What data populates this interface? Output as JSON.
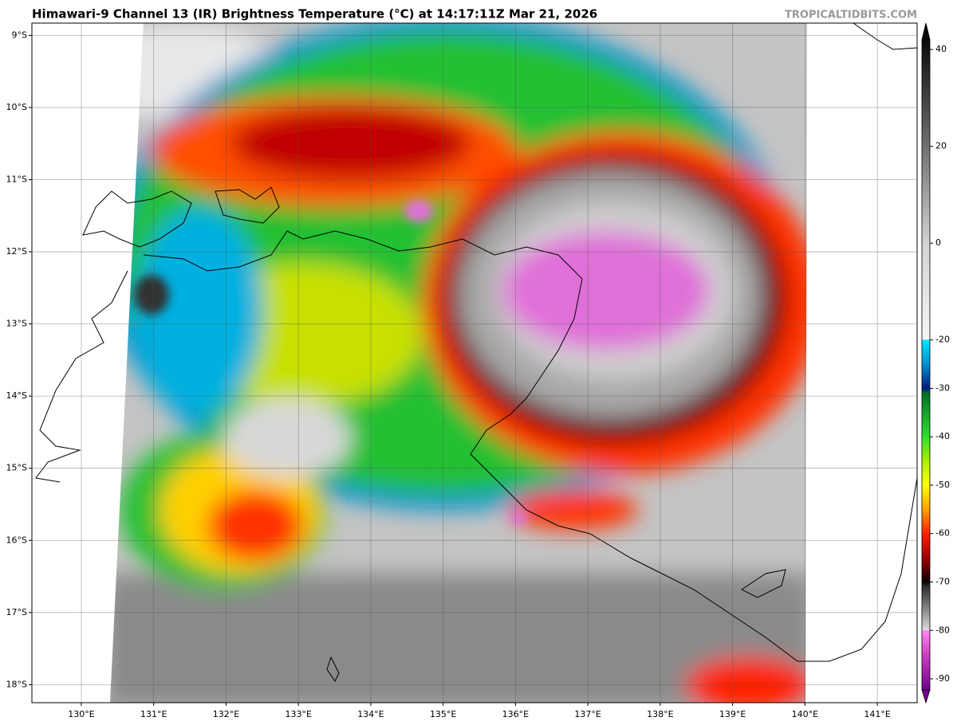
{
  "header": {
    "title": "Himawari-9 Channel 13 (IR) Brightness Temperature (°C) at 14:17:11Z Mar 21, 2026",
    "credit": "TROPICALTIDBITS.COM"
  },
  "map": {
    "lon": {
      "lim": [
        129.317,
        141.55
      ],
      "ticks": [
        {
          "value": 130,
          "label": "130°E"
        },
        {
          "value": 131,
          "label": "131°E"
        },
        {
          "value": 132,
          "label": "132°E"
        },
        {
          "value": 133,
          "label": "133°E"
        },
        {
          "value": 134,
          "label": "134°E"
        },
        {
          "value": 135,
          "label": "135°E"
        },
        {
          "value": 136,
          "label": "136°E"
        },
        {
          "value": 137,
          "label": "137°E"
        },
        {
          "value": 138,
          "label": "138°E"
        },
        {
          "value": 139,
          "label": "139°E"
        },
        {
          "value": 140,
          "label": "140°E"
        },
        {
          "value": 141,
          "label": "141°E"
        }
      ]
    },
    "lat": {
      "lim": [
        -8.83,
        -18.25
      ],
      "ticks": [
        {
          "value": -9,
          "label": "9°S"
        },
        {
          "value": -10,
          "label": "10°S"
        },
        {
          "value": -11,
          "label": "11°S"
        },
        {
          "value": -12,
          "label": "12°S"
        },
        {
          "value": -13,
          "label": "13°S"
        },
        {
          "value": -14,
          "label": "14°S"
        },
        {
          "value": -15,
          "label": "15°S"
        },
        {
          "value": -16,
          "label": "16°S"
        },
        {
          "value": -17,
          "label": "17°S"
        },
        {
          "value": -18,
          "label": "18°S"
        }
      ]
    }
  },
  "colorbar": {
    "lim": [
      42,
      -92.3
    ],
    "ticks": [
      40,
      20,
      0,
      -20,
      -30,
      -40,
      -50,
      -60,
      -70,
      -80,
      -90
    ],
    "stops": [
      {
        "value": 42,
        "color": "#0a0a0a"
      },
      {
        "value": 20,
        "color": "#707070"
      },
      {
        "value": 0,
        "color": "#d2d2d2"
      },
      {
        "value": -19.9,
        "color": "#f6f6f6"
      },
      {
        "value": -20,
        "color": "#00e8ff"
      },
      {
        "value": -25,
        "color": "#0090d0"
      },
      {
        "value": -30,
        "color": "#001a80"
      },
      {
        "value": -31,
        "color": "#00702a"
      },
      {
        "value": -40,
        "color": "#30e030"
      },
      {
        "value": -45,
        "color": "#a8f000"
      },
      {
        "value": -50,
        "color": "#ffff00"
      },
      {
        "value": -55,
        "color": "#ffa000"
      },
      {
        "value": -60,
        "color": "#ff2000"
      },
      {
        "value": -65,
        "color": "#a00000"
      },
      {
        "value": -70,
        "color": "#100000"
      },
      {
        "value": -71,
        "color": "#303030"
      },
      {
        "value": -79.9,
        "color": "#dadada"
      },
      {
        "value": -80,
        "color": "#ff88ee"
      },
      {
        "value": -85,
        "color": "#d040c0"
      },
      {
        "value": -92.3,
        "color": "#700090"
      }
    ]
  }
}
